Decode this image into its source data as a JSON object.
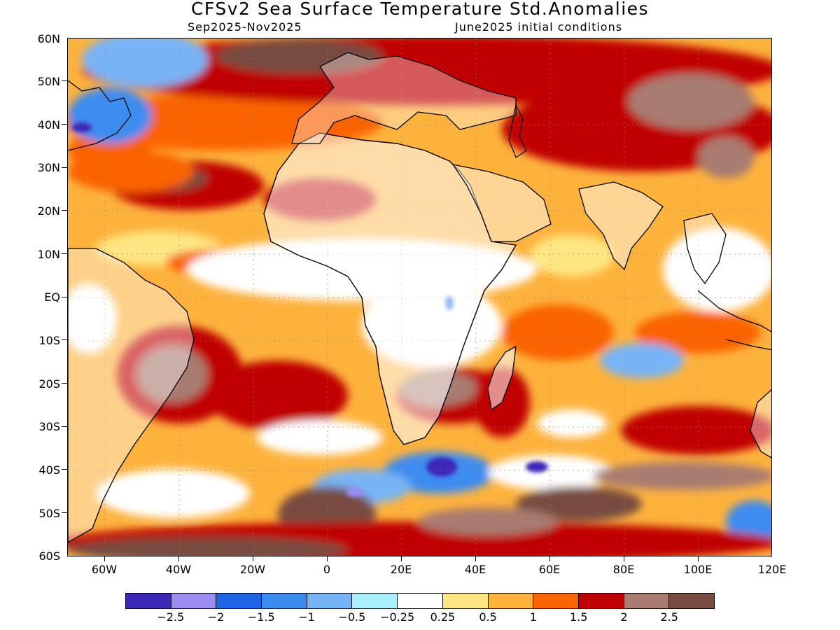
{
  "header": {
    "title": "CFSv2 Sea Surface Temperature Std.Anomalies",
    "period": "Sep2025-Nov2025",
    "initial_conditions": "June2025 initial conditions"
  },
  "axes": {
    "lat_labels": [
      "60N",
      "50N",
      "40N",
      "30N",
      "20N",
      "10N",
      "EQ",
      "10S",
      "20S",
      "30S",
      "40S",
      "50S",
      "60S"
    ],
    "lon_labels": [
      "60W",
      "40W",
      "20W",
      "0",
      "20E",
      "40E",
      "60E",
      "80E",
      "100E",
      "120E"
    ]
  },
  "colorbar": {
    "labels": [
      "-2.5",
      "-2",
      "-1.5",
      "-1",
      "-0.5",
      "-0.25",
      "0.25",
      "0.5",
      "1",
      "1.5",
      "2",
      "2.5"
    ],
    "colors": [
      "#3c28b8",
      "#9b8cf2",
      "#1e64e6",
      "#3c8cf0",
      "#78b4f5",
      "#aaf0fa",
      "#ffffff",
      "#ffe682",
      "#fdb23c",
      "#fa6404",
      "#c00000",
      "#a87c70",
      "#784c40"
    ]
  },
  "map": {
    "projection": "lat-lon",
    "lon_range": [
      -70,
      120
    ],
    "lat_range": [
      -60,
      60
    ],
    "region": "Atlantic / Africa / Indian Ocean",
    "coastlines": true,
    "dotted_grid": true
  }
}
